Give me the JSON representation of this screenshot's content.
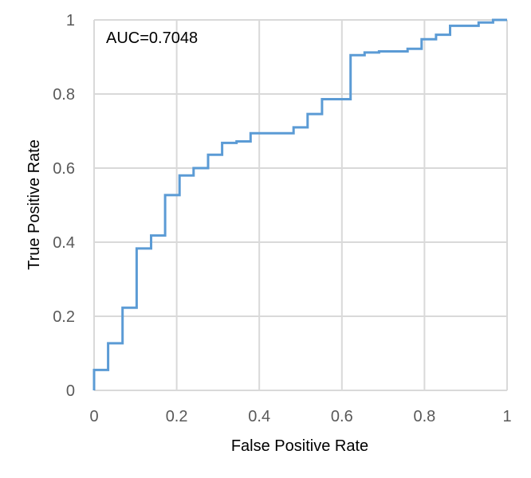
{
  "chart_data": {
    "type": "line",
    "title": "",
    "xlabel": "False Positive Rate",
    "ylabel": "True Positive Rate",
    "xlim": [
      0,
      1
    ],
    "ylim": [
      0,
      1
    ],
    "xticks": [
      "0",
      "0.2",
      "0.4",
      "0.6",
      "0.8",
      "1"
    ],
    "yticks": [
      "0",
      "0.2",
      "0.4",
      "0.6",
      "0.8",
      "1"
    ],
    "grid": true,
    "annotation": "AUC=0.7048",
    "line_color": "#5b9bd5",
    "grid_color": "#d9d9d9",
    "series": [
      {
        "name": "",
        "points": [
          [
            0.0,
            0.0
          ],
          [
            0.0,
            0.055
          ],
          [
            0.034,
            0.055
          ],
          [
            0.034,
            0.127
          ],
          [
            0.069,
            0.127
          ],
          [
            0.069,
            0.223
          ],
          [
            0.103,
            0.223
          ],
          [
            0.103,
            0.383
          ],
          [
            0.138,
            0.383
          ],
          [
            0.138,
            0.418
          ],
          [
            0.172,
            0.418
          ],
          [
            0.172,
            0.527
          ],
          [
            0.207,
            0.527
          ],
          [
            0.207,
            0.58
          ],
          [
            0.241,
            0.58
          ],
          [
            0.241,
            0.6
          ],
          [
            0.276,
            0.6
          ],
          [
            0.276,
            0.636
          ],
          [
            0.31,
            0.636
          ],
          [
            0.31,
            0.668
          ],
          [
            0.345,
            0.668
          ],
          [
            0.345,
            0.672
          ],
          [
            0.379,
            0.672
          ],
          [
            0.379,
            0.694
          ],
          [
            0.483,
            0.694
          ],
          [
            0.483,
            0.71
          ],
          [
            0.517,
            0.71
          ],
          [
            0.517,
            0.746
          ],
          [
            0.552,
            0.746
          ],
          [
            0.552,
            0.786
          ],
          [
            0.621,
            0.786
          ],
          [
            0.621,
            0.905
          ],
          [
            0.655,
            0.905
          ],
          [
            0.655,
            0.912
          ],
          [
            0.69,
            0.912
          ],
          [
            0.69,
            0.915
          ],
          [
            0.759,
            0.915
          ],
          [
            0.759,
            0.922
          ],
          [
            0.793,
            0.922
          ],
          [
            0.793,
            0.948
          ],
          [
            0.828,
            0.948
          ],
          [
            0.828,
            0.96
          ],
          [
            0.862,
            0.96
          ],
          [
            0.862,
            0.984
          ],
          [
            0.931,
            0.984
          ],
          [
            0.931,
            0.993
          ],
          [
            0.966,
            0.993
          ],
          [
            0.966,
            1.0
          ],
          [
            1.0,
            1.0
          ]
        ]
      }
    ]
  }
}
